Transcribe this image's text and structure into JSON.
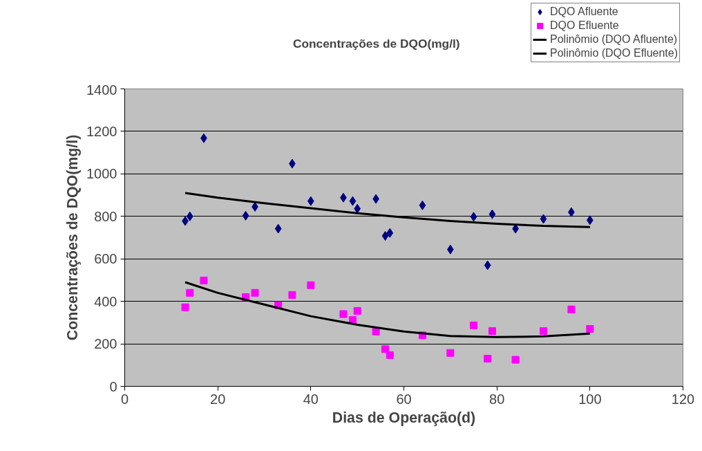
{
  "chart_data": {
    "type": "scatter",
    "title": "Concentrações de DQO(mg/l)",
    "xlabel": "Dias de Operação(d)",
    "ylabel": "Concentrações de DQO(mg/l)",
    "xlim": [
      0,
      120
    ],
    "ylim": [
      0,
      1400
    ],
    "xticks": [
      0,
      20,
      40,
      60,
      80,
      100,
      120
    ],
    "yticks": [
      0,
      200,
      400,
      600,
      800,
      1000,
      1200,
      1400
    ],
    "grid": "y",
    "legend": "top right",
    "series": [
      {
        "name": "DQO Afluente",
        "color": "#000080",
        "marker": "diamond",
        "x": [
          13,
          14,
          17,
          26,
          28,
          33,
          36,
          40,
          47,
          49,
          50,
          54,
          56,
          57,
          64,
          70,
          75,
          78,
          79,
          84,
          90,
          96,
          100
        ],
        "values": [
          778,
          800,
          1168,
          803,
          845,
          742,
          1048,
          872,
          888,
          872,
          836,
          882,
          708,
          722,
          852,
          644,
          798,
          570,
          810,
          742,
          788,
          820,
          782
        ]
      },
      {
        "name": "DQO Efluente",
        "color": "#ff00ff",
        "marker": "square",
        "x": [
          13,
          14,
          17,
          26,
          28,
          33,
          36,
          40,
          47,
          49,
          50,
          54,
          56,
          57,
          64,
          70,
          75,
          78,
          79,
          84,
          90,
          96,
          100
        ],
        "values": [
          372,
          440,
          498,
          420,
          440,
          382,
          430,
          476,
          340,
          312,
          355,
          258,
          175,
          147,
          240,
          157,
          287,
          130,
          260,
          125,
          260,
          362,
          270
        ]
      },
      {
        "name": "Polinômio (DQO Afluente)",
        "type": "line",
        "color": "#000000",
        "marker": "none",
        "x": [
          13,
          20,
          30,
          40,
          50,
          60,
          70,
          80,
          90,
          100
        ],
        "values": [
          910,
          888,
          862,
          838,
          815,
          795,
          778,
          765,
          755,
          750
        ]
      },
      {
        "name": "Polinômio (DQO Efluente)",
        "type": "line",
        "color": "#000000",
        "marker": "none",
        "x": [
          13,
          20,
          30,
          40,
          50,
          60,
          70,
          80,
          90,
          100
        ],
        "values": [
          490,
          440,
          385,
          330,
          290,
          258,
          237,
          232,
          235,
          248
        ]
      }
    ]
  }
}
